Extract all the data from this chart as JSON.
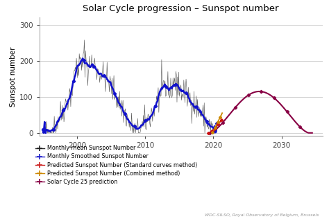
{
  "title": "Solar Cycle progression – Sunspot number",
  "ylabel": "Sunspot number",
  "xlim": [
    1994.5,
    2036
  ],
  "ylim": [
    -8,
    320
  ],
  "yticks": [
    0,
    100,
    200,
    300
  ],
  "xticks": [
    2000,
    2010,
    2020,
    2030
  ],
  "background_color": "#ffffff",
  "grid_color": "#cccccc",
  "watermark": "WDC-SILSO, Royal Observatory of Belgium, Brussels",
  "legend_labels": [
    "Monthly mean Sunspot Number",
    "Monthly Smoothed Sunspot Number",
    "Predicted Sunspot Number (Standard curves method)",
    "Predicted Sunspot Number (Combined method)",
    "Solar Cycle 25 prediction"
  ],
  "legend_colors": [
    "#222222",
    "#2222cc",
    "#cc2222",
    "#cc8800",
    "#880044"
  ],
  "plot_colors": {
    "monthly_mean": "#444444",
    "smoothed": "#1111cc",
    "pred_std": "#cc1111",
    "pred_comb": "#cc8800",
    "sc25": "#880044"
  }
}
